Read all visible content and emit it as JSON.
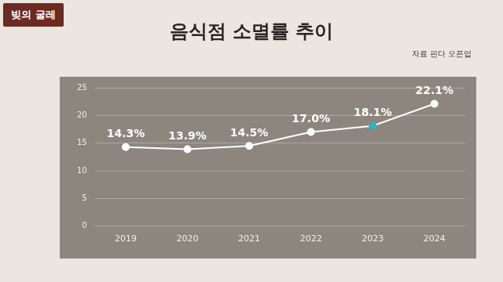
{
  "chart_data": {
    "type": "line",
    "title": "음식점 소멸률 추이",
    "annotations": [
      "자료 핀다 오픈업",
      "빚의 굴레"
    ],
    "categories": [
      "2019",
      "2020",
      "2021",
      "2022",
      "2023",
      "2024"
    ],
    "values": [
      14.3,
      13.9,
      14.5,
      17.0,
      18.1,
      22.1
    ],
    "value_labels": [
      "14.3%",
      "13.9%",
      "14.5%",
      "17.0%",
      "18.1%",
      "22.1%"
    ],
    "data_labels": true,
    "color": "#ffffff",
    "colors": [
      "#ffffff",
      "#ffffff",
      "#ffffff",
      "#ffffff",
      "#2bb5c0",
      "#ffffff"
    ],
    "marker": "circle",
    "ylim": [
      0,
      25
    ],
    "yticks": [
      0,
      5,
      10,
      15,
      20,
      25
    ],
    "grid": true
  }
}
